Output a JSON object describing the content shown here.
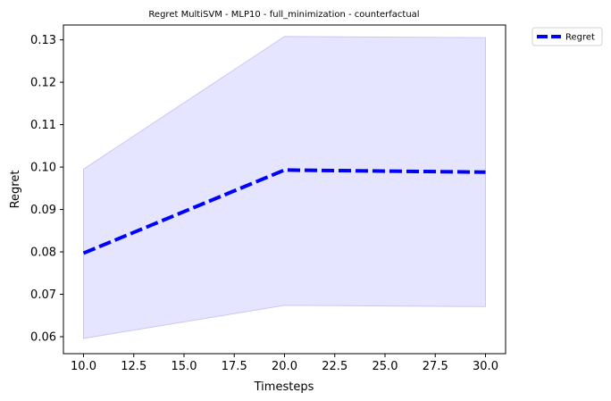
{
  "chart_data": {
    "type": "line",
    "title": "Regret MultiSVM - MLP10 - full_minimization - counterfactual",
    "xlabel": "Timesteps",
    "ylabel": "Regret",
    "xlim": [
      9.0,
      31.0
    ],
    "ylim": [
      0.056,
      0.1335
    ],
    "xticks": [
      10.0,
      12.5,
      15.0,
      17.5,
      20.0,
      22.5,
      25.0,
      27.5,
      30.0
    ],
    "xtick_labels": [
      "10.0",
      "12.5",
      "15.0",
      "17.5",
      "20.0",
      "22.5",
      "25.0",
      "27.5",
      "30.0"
    ],
    "yticks": [
      0.06,
      0.07,
      0.08,
      0.09,
      0.1,
      0.11,
      0.12,
      0.13
    ],
    "ytick_labels": [
      "0.06",
      "0.07",
      "0.08",
      "0.09",
      "0.10",
      "0.11",
      "0.12",
      "0.13"
    ],
    "grid": false,
    "legend_position": "outside-top-right",
    "series": [
      {
        "name": "Regret",
        "x": [
          10,
          20,
          30
        ],
        "values": [
          0.0797,
          0.0993,
          0.0988
        ],
        "lower": [
          0.0596,
          0.0674,
          0.0671
        ],
        "upper": [
          0.0995,
          0.1308,
          0.1305
        ],
        "color": "#0000ff",
        "band_color": "#e5e5ff",
        "line_style": "dashed"
      }
    ]
  }
}
